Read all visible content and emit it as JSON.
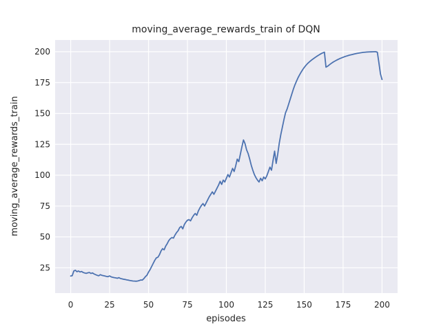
{
  "chart_data": {
    "type": "line",
    "title": "moving_average_rewards_train of DQN",
    "xlabel": "episodes",
    "ylabel": "moving_average_rewards_train",
    "xticks": [
      0,
      25,
      50,
      75,
      100,
      125,
      150,
      175,
      200
    ],
    "yticks": [
      25,
      50,
      75,
      100,
      125,
      150,
      175,
      200
    ],
    "xlim": [
      -10,
      210
    ],
    "ylim": [
      4.5,
      209.5
    ],
    "grid": true,
    "legend_position": "none",
    "style": {
      "line_color": "#4c72b0",
      "plot_bg": "#eaeaf2",
      "grid_color": "#ffffff",
      "text_color": "#262626",
      "figure_bg": "#ffffff"
    },
    "series": [
      {
        "name": "moving_average_rewards_train",
        "points": [
          [
            0,
            18.3
          ],
          [
            1,
            18.6
          ],
          [
            2,
            22.4
          ],
          [
            3,
            23
          ],
          [
            4,
            21.8
          ],
          [
            5,
            22.4
          ],
          [
            6,
            21.6
          ],
          [
            7,
            22
          ],
          [
            8,
            21.2
          ],
          [
            9,
            20.8
          ],
          [
            10,
            20.5
          ],
          [
            11,
            20.9
          ],
          [
            12,
            21.2
          ],
          [
            13,
            20.4
          ],
          [
            14,
            20.8
          ],
          [
            15,
            20
          ],
          [
            16,
            19.4
          ],
          [
            17,
            18.9
          ],
          [
            18,
            18.5
          ],
          [
            19,
            19.4
          ],
          [
            20,
            18.9
          ],
          [
            21,
            18.6
          ],
          [
            22,
            18.3
          ],
          [
            23,
            18
          ],
          [
            24,
            17.8
          ],
          [
            25,
            18.4
          ],
          [
            26,
            17.6
          ],
          [
            27,
            17.3
          ],
          [
            28,
            17
          ],
          [
            29,
            16.8
          ],
          [
            30,
            16.5
          ],
          [
            31,
            17
          ],
          [
            32,
            16.3
          ],
          [
            33,
            16
          ],
          [
            34,
            15.7
          ],
          [
            35,
            15.5
          ],
          [
            36,
            15.2
          ],
          [
            37,
            15
          ],
          [
            38,
            14.7
          ],
          [
            39,
            14.5
          ],
          [
            40,
            14.3
          ],
          [
            41,
            14.2
          ],
          [
            42,
            14.1
          ],
          [
            43,
            14.3
          ],
          [
            44,
            14.6
          ],
          [
            45,
            15.1
          ],
          [
            46,
            15
          ],
          [
            47,
            16.2
          ],
          [
            48,
            17.8
          ],
          [
            49,
            19
          ],
          [
            50,
            21.5
          ],
          [
            51,
            23.5
          ],
          [
            52,
            26
          ],
          [
            53,
            28.5
          ],
          [
            54,
            31
          ],
          [
            55,
            33
          ],
          [
            56,
            33.5
          ],
          [
            57,
            35.5
          ],
          [
            58,
            38.5
          ],
          [
            59,
            40.5
          ],
          [
            60,
            39.5
          ],
          [
            61,
            42.5
          ],
          [
            62,
            44.5
          ],
          [
            63,
            47
          ],
          [
            64,
            48.5
          ],
          [
            65,
            49.5
          ],
          [
            66,
            49
          ],
          [
            67,
            51.5
          ],
          [
            68,
            53.5
          ],
          [
            69,
            55
          ],
          [
            70,
            57.5
          ],
          [
            71,
            58.5
          ],
          [
            72,
            56.5
          ],
          [
            73,
            60
          ],
          [
            74,
            62
          ],
          [
            75,
            63.5
          ],
          [
            76,
            64
          ],
          [
            77,
            63
          ],
          [
            78,
            65.5
          ],
          [
            79,
            67.5
          ],
          [
            80,
            69
          ],
          [
            81,
            67.5
          ],
          [
            82,
            71
          ],
          [
            83,
            73.5
          ],
          [
            84,
            75.5
          ],
          [
            85,
            77
          ],
          [
            86,
            75
          ],
          [
            87,
            77.5
          ],
          [
            88,
            80
          ],
          [
            89,
            82.5
          ],
          [
            90,
            84.5
          ],
          [
            91,
            86.5
          ],
          [
            92,
            84.5
          ],
          [
            93,
            87
          ],
          [
            94,
            89.5
          ],
          [
            95,
            92
          ],
          [
            96,
            95
          ],
          [
            97,
            92.5
          ],
          [
            98,
            96
          ],
          [
            99,
            94.5
          ],
          [
            100,
            97.5
          ],
          [
            101,
            100.5
          ],
          [
            102,
            98.5
          ],
          [
            103,
            102
          ],
          [
            104,
            105.5
          ],
          [
            105,
            103
          ],
          [
            106,
            107.5
          ],
          [
            107,
            113
          ],
          [
            108,
            111
          ],
          [
            109,
            117
          ],
          [
            110,
            123
          ],
          [
            111,
            128.5
          ],
          [
            112,
            125.5
          ],
          [
            113,
            120.5
          ],
          [
            114,
            117.5
          ],
          [
            115,
            113
          ],
          [
            116,
            108
          ],
          [
            117,
            104
          ],
          [
            118,
            100.5
          ],
          [
            119,
            98
          ],
          [
            120,
            96
          ],
          [
            121,
            94.5
          ],
          [
            122,
            97.5
          ],
          [
            123,
            95.5
          ],
          [
            124,
            98.5
          ],
          [
            125,
            97
          ],
          [
            126,
            99.5
          ],
          [
            127,
            103
          ],
          [
            128,
            106.5
          ],
          [
            129,
            104
          ],
          [
            130,
            112
          ],
          [
            131,
            119.5
          ],
          [
            132,
            109.5
          ],
          [
            133,
            117
          ],
          [
            134,
            126
          ],
          [
            135,
            133
          ],
          [
            136,
            139
          ],
          [
            137,
            145
          ],
          [
            138,
            150.5
          ],
          [
            139,
            153.5
          ],
          [
            140,
            157.5
          ],
          [
            141,
            161.5
          ],
          [
            142,
            165.5
          ],
          [
            143,
            169.5
          ],
          [
            144,
            173
          ],
          [
            145,
            176
          ],
          [
            146,
            178.8
          ],
          [
            147,
            181.2
          ],
          [
            148,
            183.4
          ],
          [
            149,
            185.4
          ],
          [
            150,
            187.2
          ],
          [
            151,
            188.8
          ],
          [
            152,
            190.2
          ],
          [
            153,
            191.4
          ],
          [
            154,
            192.5
          ],
          [
            155,
            193.5
          ],
          [
            156,
            194.4
          ],
          [
            157,
            195.3
          ],
          [
            158,
            196.2
          ],
          [
            159,
            197
          ],
          [
            160,
            197.8
          ],
          [
            161,
            198.5
          ],
          [
            162,
            199.1
          ],
          [
            163,
            199.6
          ],
          [
            164,
            187.5
          ],
          [
            165,
            188.2
          ],
          [
            166,
            189.2
          ],
          [
            167,
            190.2
          ],
          [
            168,
            191.1
          ],
          [
            169,
            191.9
          ],
          [
            170,
            192.6
          ],
          [
            171,
            193.3
          ],
          [
            172,
            193.9
          ],
          [
            173,
            194.5
          ],
          [
            174,
            195
          ],
          [
            175,
            195.5
          ],
          [
            176,
            196
          ],
          [
            177,
            196.4
          ],
          [
            178,
            196.8
          ],
          [
            179,
            197.2
          ],
          [
            180,
            197.5
          ],
          [
            181,
            197.8
          ],
          [
            182,
            198.1
          ],
          [
            183,
            198.4
          ],
          [
            184,
            198.7
          ],
          [
            185,
            198.9
          ],
          [
            186,
            199.1
          ],
          [
            187,
            199.3
          ],
          [
            188,
            199.5
          ],
          [
            189,
            199.6
          ],
          [
            190,
            199.7
          ],
          [
            191,
            199.8
          ],
          [
            192,
            199.85
          ],
          [
            193,
            199.9
          ],
          [
            194,
            199.95
          ],
          [
            195,
            200
          ],
          [
            196,
            200
          ],
          [
            197,
            199.6
          ],
          [
            198,
            191
          ],
          [
            199,
            182
          ],
          [
            200,
            177.5
          ]
        ]
      }
    ]
  }
}
